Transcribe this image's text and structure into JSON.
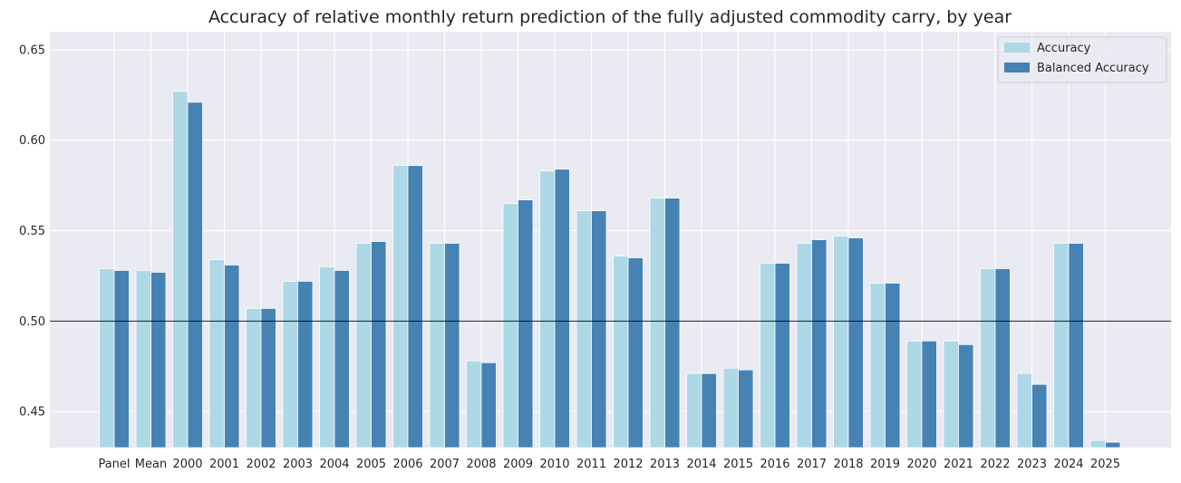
{
  "chart_data": {
    "type": "bar",
    "title": "Accuracy of relative monthly return prediction of the fully adjusted commodity carry, by year",
    "xlabel": "",
    "ylabel": "",
    "ylim": [
      0.43,
      0.66
    ],
    "yticks": [
      0.45,
      0.5,
      0.55,
      0.6,
      0.65
    ],
    "ytick_labels": [
      "0.45",
      "0.50",
      "0.55",
      "0.60",
      "0.65"
    ],
    "reference_line": 0.5,
    "grid": true,
    "legend_position": "top-right",
    "categories": [
      "Panel",
      "Mean",
      "2000",
      "2001",
      "2002",
      "2003",
      "2004",
      "2005",
      "2006",
      "2007",
      "2008",
      "2009",
      "2010",
      "2011",
      "2012",
      "2013",
      "2014",
      "2015",
      "2016",
      "2017",
      "2018",
      "2019",
      "2020",
      "2021",
      "2022",
      "2023",
      "2024",
      "2025"
    ],
    "series": [
      {
        "name": "Accuracy",
        "color": "#add8e6",
        "values": [
          0.529,
          0.528,
          0.627,
          0.534,
          0.507,
          0.522,
          0.53,
          0.543,
          0.586,
          0.543,
          0.478,
          0.565,
          0.583,
          0.561,
          0.536,
          0.568,
          0.471,
          0.474,
          0.532,
          0.543,
          0.547,
          0.521,
          0.489,
          0.489,
          0.529,
          0.471,
          0.543,
          0.434
        ]
      },
      {
        "name": "Balanced Accuracy",
        "color": "#4682b4",
        "values": [
          0.528,
          0.527,
          0.621,
          0.531,
          0.507,
          0.522,
          0.528,
          0.544,
          0.586,
          0.543,
          0.477,
          0.567,
          0.584,
          0.561,
          0.535,
          0.568,
          0.471,
          0.473,
          0.532,
          0.545,
          0.546,
          0.521,
          0.489,
          0.487,
          0.529,
          0.465,
          0.543,
          0.433
        ]
      }
    ]
  }
}
